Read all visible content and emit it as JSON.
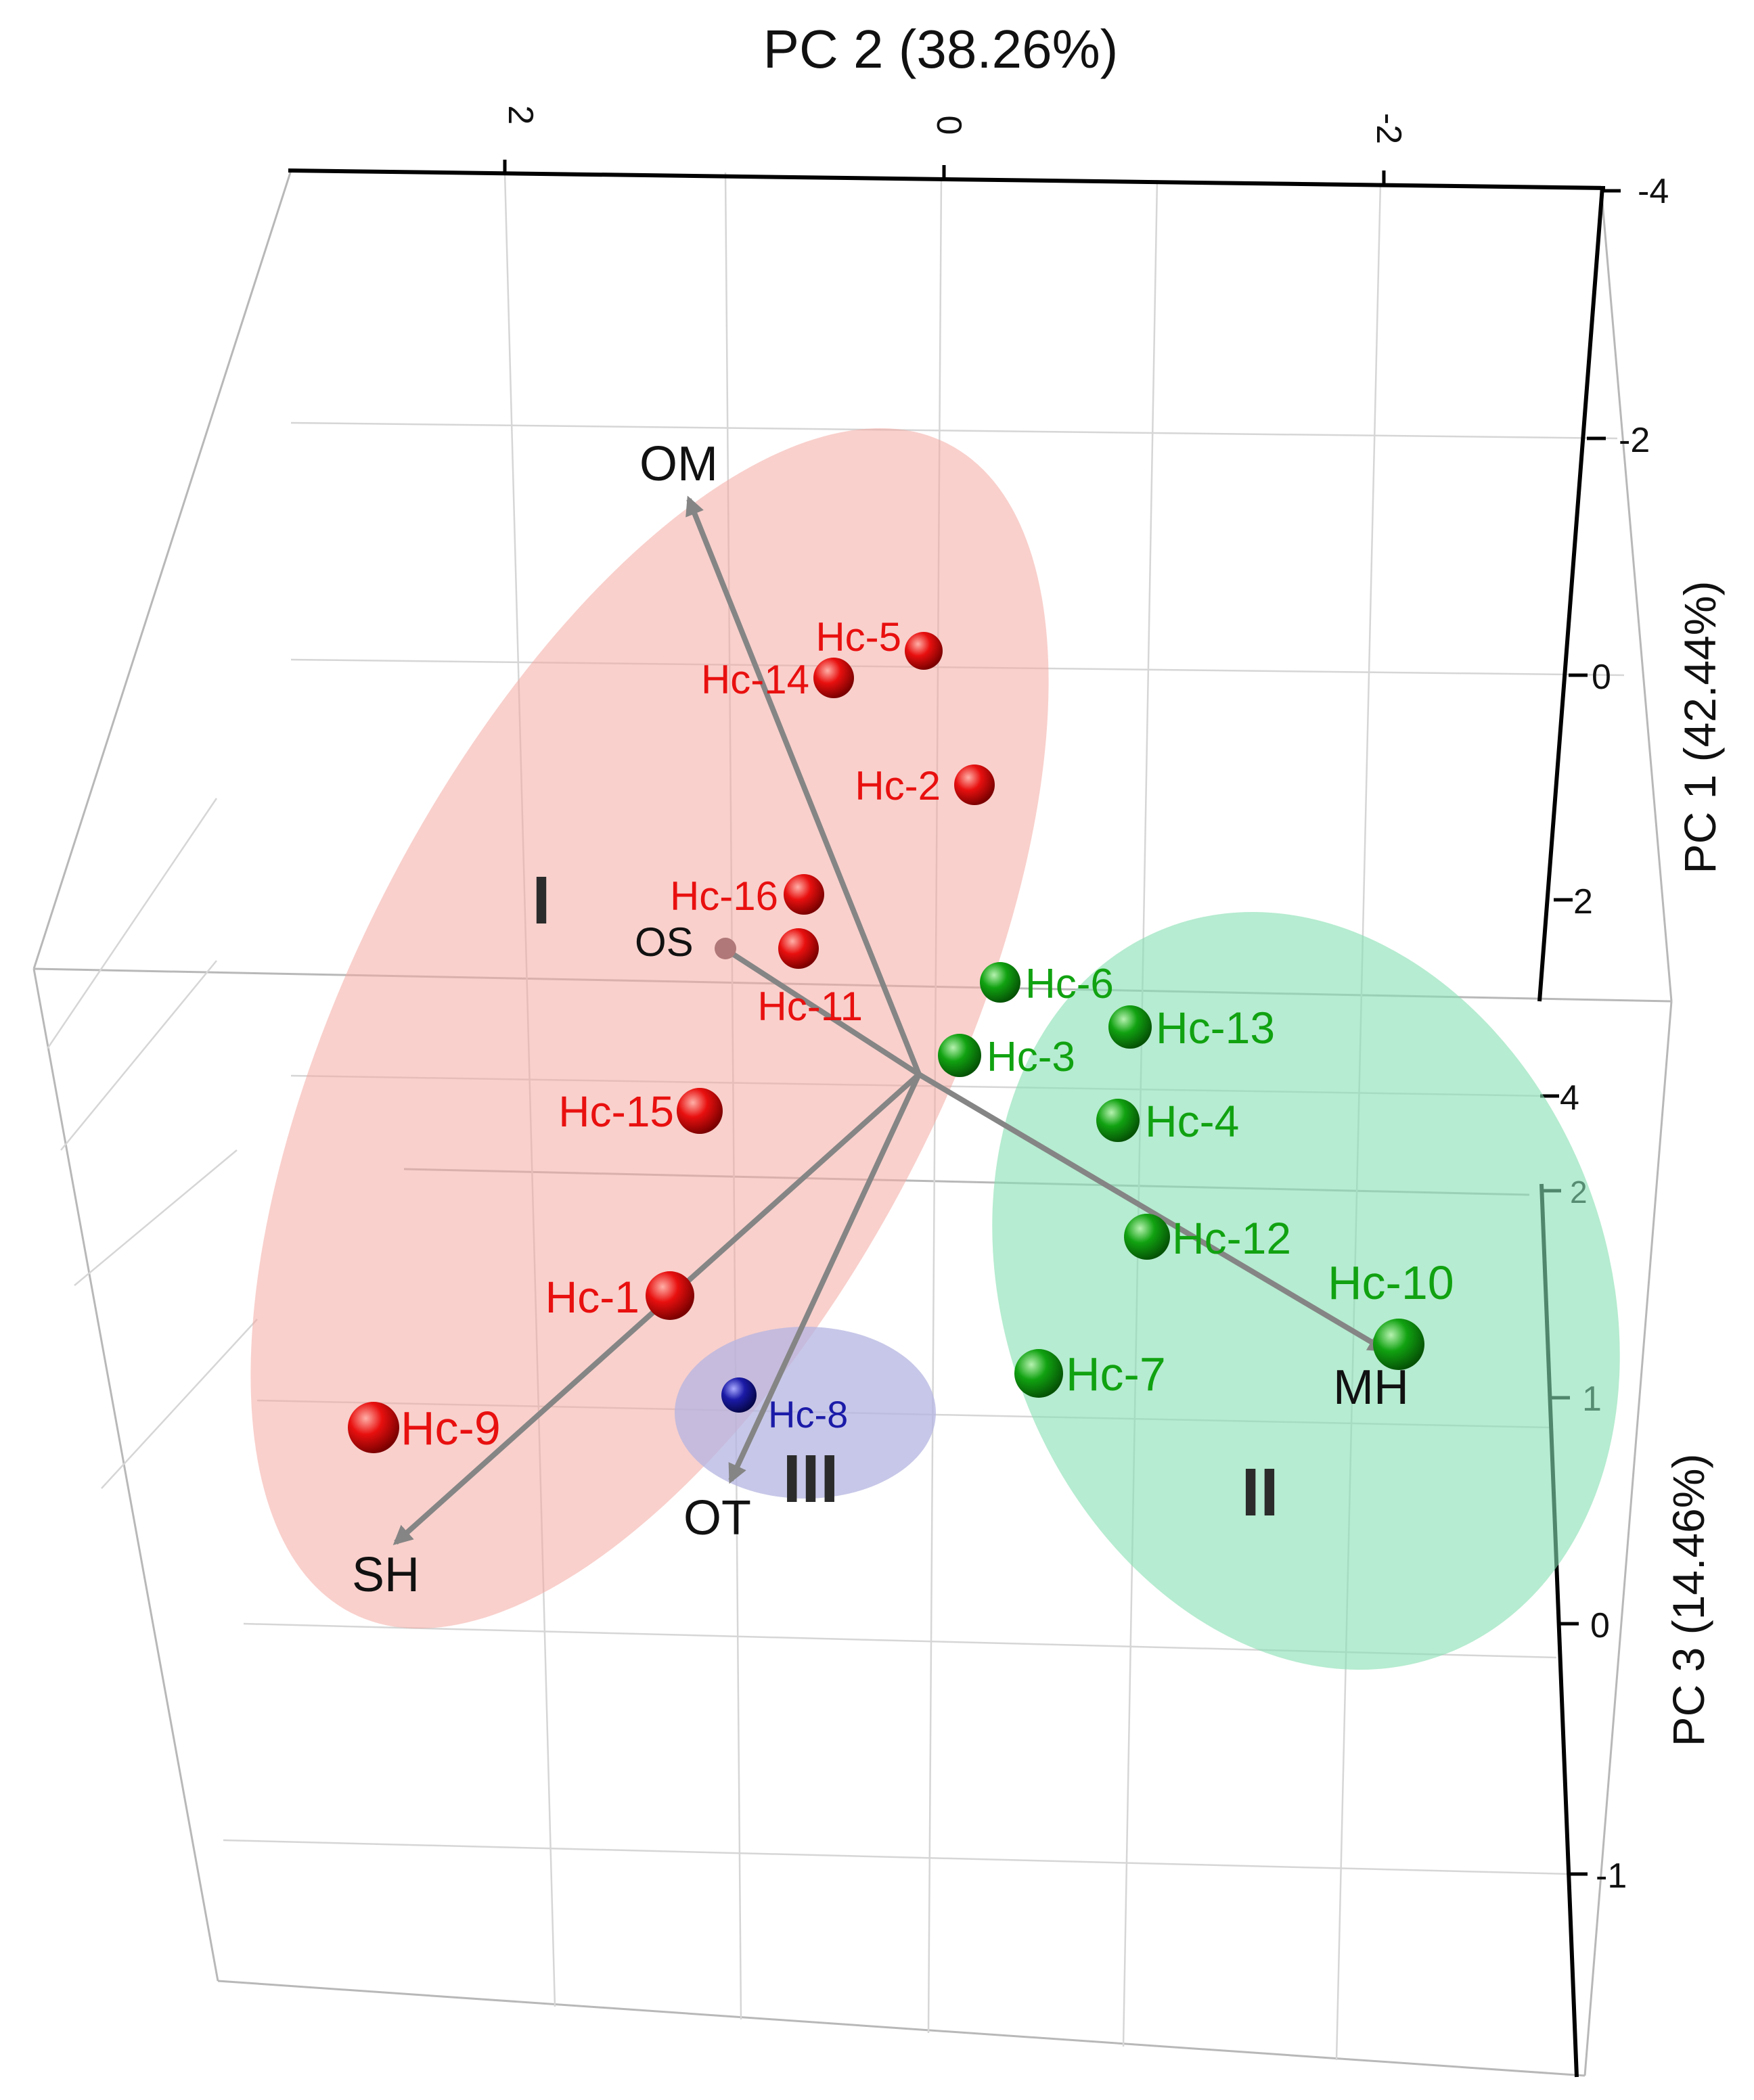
{
  "chart_data": {
    "type": "scatter",
    "projection": "3d-biplot",
    "title": "",
    "axes": {
      "pc2": {
        "label": "PC 2 (38.26%)",
        "ticks": [
          "2",
          "0",
          "-2"
        ]
      },
      "pc1": {
        "label": "PC 1 (42.44%)",
        "ticks": [
          "-4",
          "-2",
          "0",
          "2",
          "4"
        ]
      },
      "pc3": {
        "label": "PC 3 (14.46%)",
        "ticks": [
          "2",
          "1",
          "0",
          "-1"
        ]
      }
    },
    "grid": true,
    "clusters": [
      {
        "label": "I",
        "color": "#f4a9a3"
      },
      {
        "label": "II",
        "color": "#86e0b3"
      },
      {
        "label": "III",
        "color": "#b4b4e2"
      }
    ],
    "points": [
      {
        "name": "Hc-5",
        "group": "I",
        "color": "#e8100f"
      },
      {
        "name": "Hc-14",
        "group": "I",
        "color": "#e8100f"
      },
      {
        "name": "Hc-2",
        "group": "I",
        "color": "#e8100f"
      },
      {
        "name": "Hc-16",
        "group": "I",
        "color": "#e8100f"
      },
      {
        "name": "Hc-11",
        "group": "I",
        "color": "#e8100f"
      },
      {
        "name": "Hc-15",
        "group": "I",
        "color": "#e8100f"
      },
      {
        "name": "Hc-1",
        "group": "I",
        "color": "#e8100f"
      },
      {
        "name": "Hc-9",
        "group": "I",
        "color": "#e8100f"
      },
      {
        "name": "Hc-6",
        "group": "II",
        "color": "#11a211"
      },
      {
        "name": "Hc-13",
        "group": "II",
        "color": "#11a211"
      },
      {
        "name": "Hc-3",
        "group": "II",
        "color": "#11a211"
      },
      {
        "name": "Hc-4",
        "group": "II",
        "color": "#11a211"
      },
      {
        "name": "Hc-12",
        "group": "II",
        "color": "#11a211"
      },
      {
        "name": "Hc-10",
        "group": "II",
        "color": "#11a211"
      },
      {
        "name": "Hc-7",
        "group": "II",
        "color": "#11a211"
      },
      {
        "name": "Hc-8",
        "group": "III",
        "color": "#1b1ba8"
      }
    ],
    "loadings": [
      "OM",
      "OS",
      "SH",
      "OT",
      "MH"
    ],
    "colors": {
      "vector": "#858585",
      "axis": "#000000",
      "grid": "#d6d6d6",
      "frame": "#b8b8b8",
      "loading_label": "#111111"
    }
  }
}
